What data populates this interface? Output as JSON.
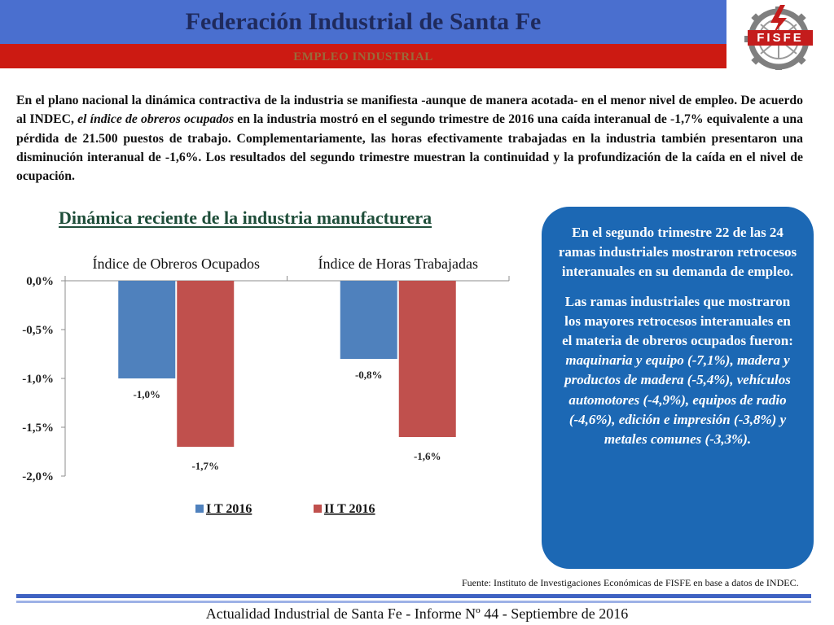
{
  "header": {
    "title": "Federación Industrial de Santa Fe",
    "subtitle": "EMPLEO INDUSTRIAL",
    "colors": {
      "blue": "#4a6fcf",
      "red": "#cc1a12"
    }
  },
  "logo": {
    "text": "FISFE",
    "icon": "fisfe-gear-logo"
  },
  "intro": {
    "part1": "En el plano nacional la dinámica contractiva de la industria se manifiesta -aunque de manera acotada- en el menor nivel de empleo. De acuerdo al INDEC, ",
    "emphasis": "el índice de obreros ocupados",
    "part2": " en la industria mostró en el segundo trimestre de 2016 una caída interanual de -1,7% equivalente a una pérdida de 21.500 puestos de trabajo. Complementariamente, las horas efectivamente trabajadas en la industria también presentaron una disminución interanual de -1,6%. Los resultados del segundo trimestre muestran la continuidad y la profundización de la caída en el nivel de ocupación."
  },
  "chart_heading": "Dinámica reciente de la industria manufacturera",
  "chart_data": {
    "type": "bar",
    "categories": [
      "Índice de Obreros Ocupados",
      "Índice de Horas Trabajadas"
    ],
    "series": [
      {
        "name": "I T 2016",
        "values": [
          -1.0,
          -0.8
        ],
        "labels": [
          "-1,0%",
          "-0,8%"
        ],
        "color": "#4f81bd"
      },
      {
        "name": "II T 2016",
        "values": [
          -1.7,
          -1.6
        ],
        "labels": [
          "-1,7%",
          "-1,6%"
        ],
        "color": "#c0504d"
      }
    ],
    "ylim": [
      -2.0,
      0.0
    ],
    "yticks": [
      0.0,
      -0.5,
      -1.0,
      -1.5,
      -2.0
    ],
    "ytick_labels": [
      "0,0%",
      "-0,5%",
      "-1,0%",
      "-1,5%",
      "-2,0%"
    ],
    "grid": false,
    "legend": "bottom"
  },
  "callout": {
    "p1": "En el segundo trimestre 22 de las 24 ramas industriales mostraron retrocesos interanuales en su demanda de empleo.",
    "p2": "Las ramas industriales que mostraron los mayores retrocesos interanuales en el materia de obreros ocupados fueron:",
    "p2_list": "maquinaria y equipo (-7,1%), madera y productos de madera (-5,4%), vehículos automotores (-4,9%), equipos de radio (-4,6%), edición e impresión (-3,8%) y metales comunes (-3,3%).",
    "color": "#1c68b4"
  },
  "source": "Fuente: Instituto de Investigaciones Económicas de FISFE en base a datos de INDEC.",
  "footer": "Actualidad Industrial de Santa Fe - Informe Nº 44 - Septiembre de 2016"
}
